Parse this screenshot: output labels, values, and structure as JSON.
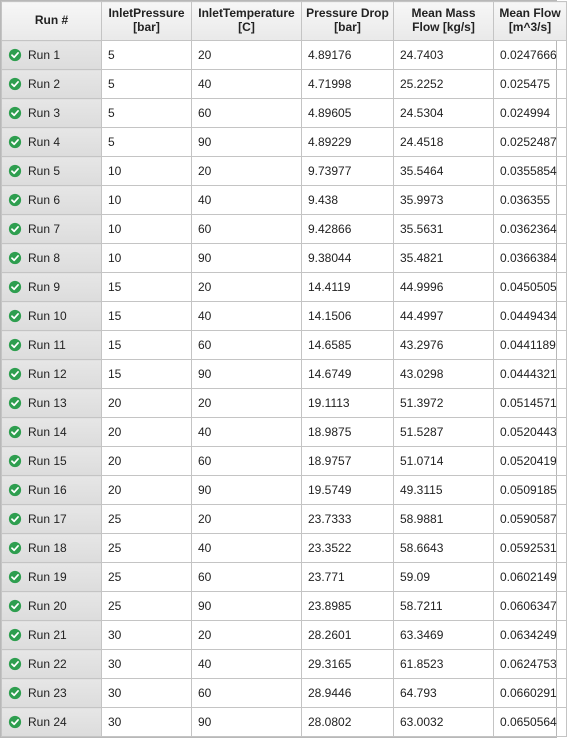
{
  "columns": [
    {
      "key": "run",
      "label": "Run #"
    },
    {
      "key": "inletPressure",
      "label": "InletPressure\n[bar]"
    },
    {
      "key": "inletTemp",
      "label": "InletTemperature\n[C]"
    },
    {
      "key": "pressureDrop",
      "label": "Pressure Drop\n[bar]"
    },
    {
      "key": "meanMassFlow",
      "label": "Mean Mass Flow\n[kg/s]"
    },
    {
      "key": "meanFlow",
      "label": "Mean Flow\n[m^3/s]"
    }
  ],
  "status_icon": {
    "name": "check-circle-icon",
    "fill": "#2e9e4f",
    "check": "#ffffff"
  },
  "rows": [
    {
      "run": "Run 1",
      "inletPressure": "5",
      "inletTemp": "20",
      "pressureDrop": "4.89176",
      "meanMassFlow": "24.7403",
      "meanFlow": "0.0247666"
    },
    {
      "run": "Run 2",
      "inletPressure": "5",
      "inletTemp": "40",
      "pressureDrop": "4.71998",
      "meanMassFlow": "25.2252",
      "meanFlow": "0.025475"
    },
    {
      "run": "Run 3",
      "inletPressure": "5",
      "inletTemp": "60",
      "pressureDrop": "4.89605",
      "meanMassFlow": "24.5304",
      "meanFlow": "0.024994"
    },
    {
      "run": "Run 4",
      "inletPressure": "5",
      "inletTemp": "90",
      "pressureDrop": "4.89229",
      "meanMassFlow": "24.4518",
      "meanFlow": "0.0252487"
    },
    {
      "run": "Run 5",
      "inletPressure": "10",
      "inletTemp": "20",
      "pressureDrop": "9.73977",
      "meanMassFlow": "35.5464",
      "meanFlow": "0.0355854"
    },
    {
      "run": "Run 6",
      "inletPressure": "10",
      "inletTemp": "40",
      "pressureDrop": "9.438",
      "meanMassFlow": "35.9973",
      "meanFlow": "0.036355"
    },
    {
      "run": "Run 7",
      "inletPressure": "10",
      "inletTemp": "60",
      "pressureDrop": "9.42866",
      "meanMassFlow": "35.5631",
      "meanFlow": "0.0362364"
    },
    {
      "run": "Run 8",
      "inletPressure": "10",
      "inletTemp": "90",
      "pressureDrop": "9.38044",
      "meanMassFlow": "35.4821",
      "meanFlow": "0.0366384"
    },
    {
      "run": "Run 9",
      "inletPressure": "15",
      "inletTemp": "20",
      "pressureDrop": "14.4119",
      "meanMassFlow": "44.9996",
      "meanFlow": "0.0450505"
    },
    {
      "run": "Run 10",
      "inletPressure": "15",
      "inletTemp": "40",
      "pressureDrop": "14.1506",
      "meanMassFlow": "44.4997",
      "meanFlow": "0.0449434"
    },
    {
      "run": "Run 11",
      "inletPressure": "15",
      "inletTemp": "60",
      "pressureDrop": "14.6585",
      "meanMassFlow": "43.2976",
      "meanFlow": "0.0441189"
    },
    {
      "run": "Run 12",
      "inletPressure": "15",
      "inletTemp": "90",
      "pressureDrop": "14.6749",
      "meanMassFlow": "43.0298",
      "meanFlow": "0.0444321"
    },
    {
      "run": "Run 13",
      "inletPressure": "20",
      "inletTemp": "20",
      "pressureDrop": "19.1113",
      "meanMassFlow": "51.3972",
      "meanFlow": "0.0514571"
    },
    {
      "run": "Run 14",
      "inletPressure": "20",
      "inletTemp": "40",
      "pressureDrop": "18.9875",
      "meanMassFlow": "51.5287",
      "meanFlow": "0.0520443"
    },
    {
      "run": "Run 15",
      "inletPressure": "20",
      "inletTemp": "60",
      "pressureDrop": "18.9757",
      "meanMassFlow": "51.0714",
      "meanFlow": "0.0520419"
    },
    {
      "run": "Run 16",
      "inletPressure": "20",
      "inletTemp": "90",
      "pressureDrop": "19.5749",
      "meanMassFlow": "49.3115",
      "meanFlow": "0.0509185"
    },
    {
      "run": "Run 17",
      "inletPressure": "25",
      "inletTemp": "20",
      "pressureDrop": "23.7333",
      "meanMassFlow": "58.9881",
      "meanFlow": "0.0590587"
    },
    {
      "run": "Run 18",
      "inletPressure": "25",
      "inletTemp": "40",
      "pressureDrop": "23.3522",
      "meanMassFlow": "58.6643",
      "meanFlow": "0.0592531"
    },
    {
      "run": "Run 19",
      "inletPressure": "25",
      "inletTemp": "60",
      "pressureDrop": "23.771",
      "meanMassFlow": "59.09",
      "meanFlow": "0.0602149"
    },
    {
      "run": "Run 20",
      "inletPressure": "25",
      "inletTemp": "90",
      "pressureDrop": "23.8985",
      "meanMassFlow": "58.7211",
      "meanFlow": "0.0606347"
    },
    {
      "run": "Run 21",
      "inletPressure": "30",
      "inletTemp": "20",
      "pressureDrop": "28.2601",
      "meanMassFlow": "63.3469",
      "meanFlow": "0.0634249"
    },
    {
      "run": "Run 22",
      "inletPressure": "30",
      "inletTemp": "40",
      "pressureDrop": "29.3165",
      "meanMassFlow": "61.8523",
      "meanFlow": "0.0624753"
    },
    {
      "run": "Run 23",
      "inletPressure": "30",
      "inletTemp": "60",
      "pressureDrop": "28.9446",
      "meanMassFlow": "64.793",
      "meanFlow": "0.0660291"
    },
    {
      "run": "Run 24",
      "inletPressure": "30",
      "inletTemp": "90",
      "pressureDrop": "28.0802",
      "meanMassFlow": "63.0032",
      "meanFlow": "0.0650564"
    }
  ]
}
